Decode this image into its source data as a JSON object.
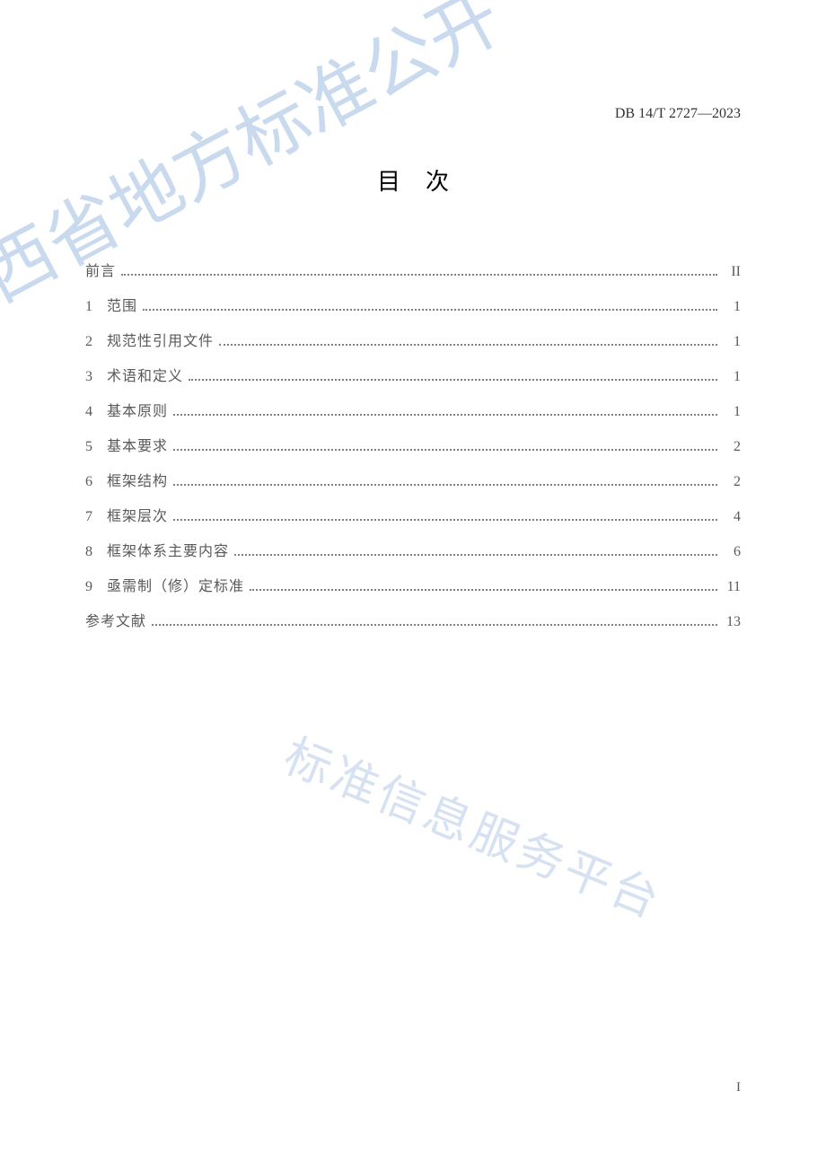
{
  "header": {
    "doc_code": "DB 14/T 2727—2023"
  },
  "title": "目次",
  "toc": {
    "entries": [
      {
        "number": "",
        "label": "前言",
        "page": "II"
      },
      {
        "number": "1",
        "label": "范围",
        "page": "1"
      },
      {
        "number": "2",
        "label": "规范性引用文件",
        "page": "1"
      },
      {
        "number": "3",
        "label": "术语和定义",
        "page": "1"
      },
      {
        "number": "4",
        "label": "基本原则",
        "page": "1"
      },
      {
        "number": "5",
        "label": "基本要求",
        "page": "2"
      },
      {
        "number": "6",
        "label": "框架结构",
        "page": "2"
      },
      {
        "number": "7",
        "label": "框架层次",
        "page": "4"
      },
      {
        "number": "8",
        "label": "框架体系主要内容",
        "page": "6"
      },
      {
        "number": "9",
        "label": "亟需制（修）定标准",
        "page": "11"
      },
      {
        "number": "",
        "label": "参考文献",
        "page": "13"
      }
    ]
  },
  "watermarks": {
    "wm1": "山西省地方标准公开",
    "wm2": "标准信息服务平台"
  },
  "footer": {
    "page_number": "I"
  },
  "colors": {
    "background": "#ffffff",
    "text_primary": "#333333",
    "text_toc": "#595959",
    "watermark_color": "rgba(100, 150, 210, 0.35)"
  },
  "typography": {
    "title_fontsize": 26,
    "toc_fontsize": 16,
    "code_fontsize": 16
  }
}
